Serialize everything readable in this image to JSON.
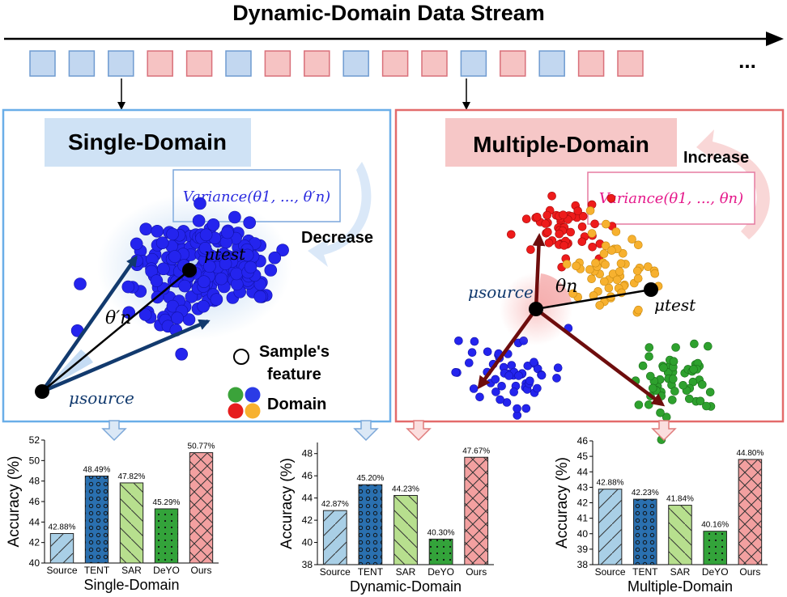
{
  "header": {
    "title": "Dynamic-Domain Data Stream",
    "ellipsis": "..."
  },
  "stream": {
    "colors": {
      "blue_fill": "#c2d7f0",
      "blue_stroke": "#6f9bd1",
      "red_fill": "#f6c3c3",
      "red_stroke": "#d9707a"
    },
    "sequence": [
      "blue",
      "blue",
      "blue",
      "red",
      "red",
      "blue",
      "red",
      "red",
      "blue",
      "red",
      "red",
      "blue",
      "red",
      "blue",
      "red",
      "red"
    ]
  },
  "single_panel": {
    "title": "Single-Domain",
    "variance_label": "Variance(θ1, ..., θ′n)",
    "decrease_label": "Decrease",
    "angle_label": "θ′n",
    "mu_source": "μsource",
    "mu_test": "μtest",
    "legend_sample": "Sample's\nfeature",
    "legend_sample_line1": "Sample's",
    "legend_sample_line2": "feature",
    "legend_domain": "Domain",
    "border_color": "#6aaee8"
  },
  "multi_panel": {
    "title": "Multiple-Domain",
    "variance_label": "Variance(θ1, ..., θn)",
    "increase_label": "Increase",
    "angle_label": "θn",
    "mu_source": "μsource",
    "mu_test": "μtest",
    "border_color": "#e36b6b"
  },
  "chart_data": [
    {
      "type": "bar",
      "xlabel": "Single-Domain",
      "ylabel": "Accuracy (%)",
      "categories": [
        "Source",
        "TENT",
        "SAR",
        "DeYO",
        "Ours"
      ],
      "values": [
        42.88,
        48.49,
        47.82,
        45.29,
        50.77
      ],
      "value_labels": [
        "42.88%",
        "48.49%",
        "47.82%",
        "45.29%",
        "50.77%"
      ],
      "ylim": [
        40,
        52
      ],
      "yticks": [
        40,
        42,
        44,
        46,
        48,
        50,
        52
      ]
    },
    {
      "type": "bar",
      "xlabel": "Dynamic-Domain",
      "ylabel": "Accuracy (%)",
      "categories": [
        "Source",
        "TENT",
        "SAR",
        "DeYO",
        "Ours"
      ],
      "values": [
        42.87,
        45.2,
        44.23,
        40.3,
        47.67
      ],
      "value_labels": [
        "42.87%",
        "45.20%",
        "44.23%",
        "40.30%",
        "47.67%"
      ],
      "ylim": [
        38,
        49
      ],
      "yticks": [
        38,
        40,
        42,
        44,
        46,
        48
      ]
    },
    {
      "type": "bar",
      "xlabel": "Multiple-Domain",
      "ylabel": "Accuracy (%)",
      "categories": [
        "Source",
        "TENT",
        "SAR",
        "DeYO",
        "Ours"
      ],
      "values": [
        42.88,
        42.23,
        41.84,
        40.16,
        44.8
      ],
      "value_labels": [
        "42.88%",
        "42.23%",
        "41.84%",
        "40.16%",
        "44.80%"
      ],
      "ylim": [
        38,
        46
      ],
      "yticks": [
        38,
        39,
        40,
        41,
        42,
        43,
        44,
        45,
        46
      ]
    }
  ],
  "bar_styles": {
    "colors": [
      "#a9cfe6",
      "#2a70b0",
      "#b7df8e",
      "#33a33a",
      "#f3a0a0"
    ],
    "patterns": [
      "slash",
      "circles",
      "backslash",
      "dots",
      "cross"
    ]
  }
}
